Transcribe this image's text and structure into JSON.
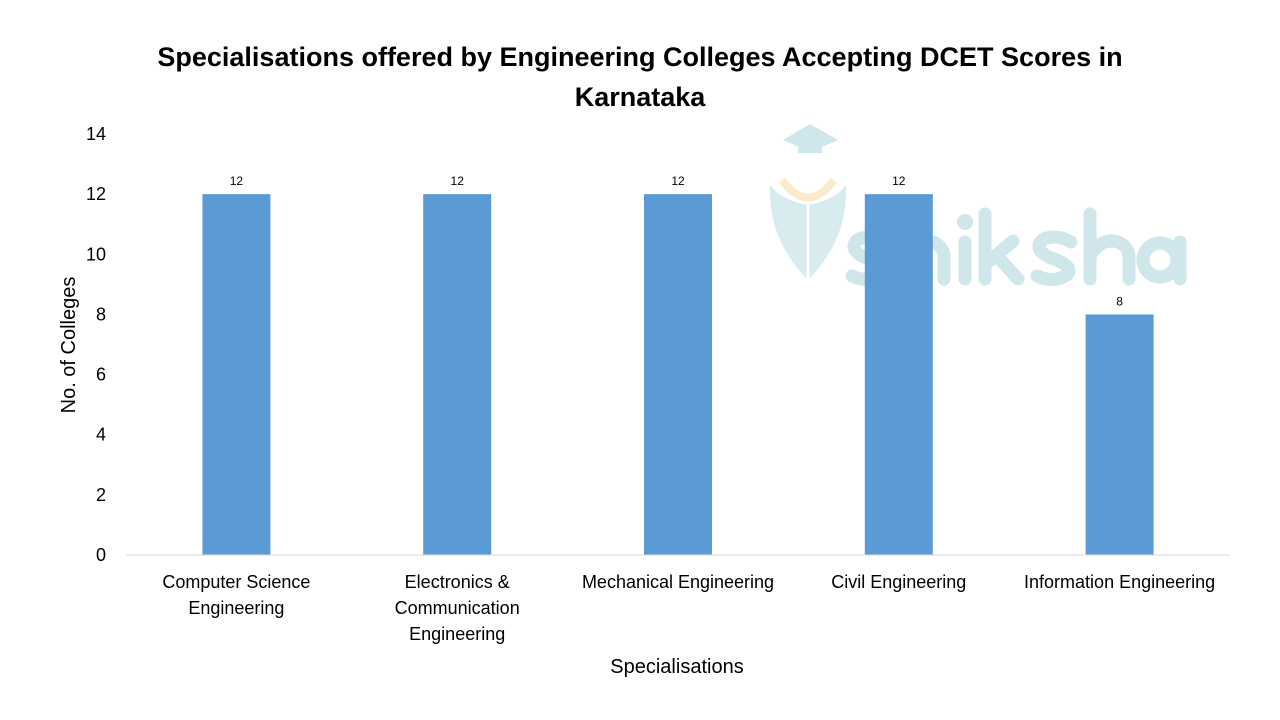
{
  "watermark": {
    "text": "shiksha",
    "color": "#cfe6ea",
    "accent": "#fde9cc"
  },
  "chart_data": {
    "type": "bar",
    "title": [
      "Specialisations offered by Engineering Colleges Accepting DCET Scores in",
      "Karnataka"
    ],
    "xlabel": "Specialisations",
    "ylabel": "No. of Colleges",
    "categories": [
      [
        "Computer Science",
        "Engineering"
      ],
      [
        "Electronics &",
        "Communication",
        "Engineering"
      ],
      [
        "Mechanical Engineering"
      ],
      [
        "Civil Engineering"
      ],
      [
        "Information Engineering"
      ]
    ],
    "values": [
      12,
      12,
      12,
      12,
      8
    ],
    "data_labels": [
      "12",
      "12",
      "12",
      "12",
      "8"
    ],
    "ylim": [
      0,
      14
    ],
    "yticks": [
      "0",
      "2",
      "4",
      "6",
      "8",
      "10",
      "12",
      "14"
    ],
    "grid": false,
    "legend": "none",
    "bar_color": "#5b9bd5"
  }
}
